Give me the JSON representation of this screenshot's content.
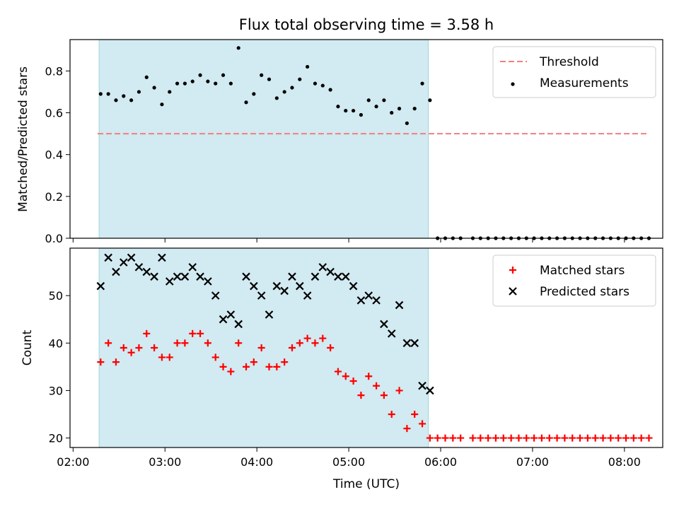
{
  "chart_data": [
    {
      "type": "scatter",
      "title": "Flux total observing time = 3.58 h",
      "ylabel": "Matched/Predicted stars",
      "xlabel": "",
      "ylim": [
        0,
        0.95
      ],
      "yticks": [
        0.0,
        0.2,
        0.4,
        0.6,
        0.8
      ],
      "ytick_labels": [
        "0.0",
        "0.2",
        "0.4",
        "0.6",
        "0.8"
      ],
      "legend_position": "top-right",
      "threshold": {
        "name": "Threshold",
        "value": 0.5,
        "x_start": "02:16",
        "x_end": "08:16",
        "color": "#f08080"
      },
      "shaded_region": {
        "x_start": "02:17",
        "x_end": "05:52",
        "color": "#add8e6"
      },
      "series": [
        {
          "name": "Measurements",
          "color": "#000000",
          "x": [
            "02:18",
            "02:23",
            "02:28",
            "02:33",
            "02:38",
            "02:43",
            "02:48",
            "02:53",
            "02:58",
            "03:03",
            "03:08",
            "03:13",
            "03:18",
            "03:23",
            "03:28",
            "03:33",
            "03:38",
            "03:43",
            "03:48",
            "03:53",
            "03:58",
            "04:03",
            "04:08",
            "04:13",
            "04:18",
            "04:23",
            "04:28",
            "04:33",
            "04:38",
            "04:43",
            "04:48",
            "04:53",
            "04:58",
            "05:03",
            "05:08",
            "05:13",
            "05:18",
            "05:23",
            "05:28",
            "05:33",
            "05:38",
            "05:43",
            "05:48",
            "05:53",
            "05:58",
            "06:03",
            "06:08",
            "06:13",
            "06:21",
            "06:26",
            "06:31",
            "06:36",
            "06:41",
            "06:46",
            "06:51",
            "06:56",
            "07:01",
            "07:06",
            "07:11",
            "07:16",
            "07:21",
            "07:26",
            "07:31",
            "07:36",
            "07:41",
            "07:46",
            "07:51",
            "07:56",
            "08:01",
            "08:06",
            "08:11",
            "08:16"
          ],
          "y": [
            0.69,
            0.69,
            0.66,
            0.68,
            0.66,
            0.7,
            0.77,
            0.72,
            0.64,
            0.7,
            0.74,
            0.74,
            0.75,
            0.78,
            0.75,
            0.74,
            0.78,
            0.74,
            0.91,
            0.65,
            0.69,
            0.78,
            0.76,
            0.67,
            0.7,
            0.72,
            0.76,
            0.82,
            0.74,
            0.73,
            0.71,
            0.63,
            0.61,
            0.61,
            0.59,
            0.66,
            0.63,
            0.66,
            0.6,
            0.62,
            0.55,
            0.62,
            0.74,
            0.66,
            0,
            0,
            0,
            0,
            0,
            0,
            0,
            0,
            0,
            0,
            0,
            0,
            0,
            0,
            0,
            0,
            0,
            0,
            0,
            0,
            0,
            0,
            0,
            0,
            0,
            0,
            0,
            0
          ]
        }
      ]
    },
    {
      "type": "scatter",
      "xlabel": "Time (UTC)",
      "ylabel": "Count",
      "ylim": [
        18,
        60
      ],
      "yticks": [
        20,
        30,
        40,
        50
      ],
      "ytick_labels": [
        "20",
        "30",
        "40",
        "50"
      ],
      "xticks": [
        "02:00",
        "03:00",
        "04:00",
        "05:00",
        "06:00",
        "07:00",
        "08:00"
      ],
      "legend_position": "top-right",
      "shaded_region": {
        "x_start": "02:17",
        "x_end": "05:52",
        "color": "#add8e6"
      },
      "series": [
        {
          "name": "Matched stars",
          "marker": "plus",
          "color": "#ff0000",
          "x": [
            "02:18",
            "02:23",
            "02:28",
            "02:33",
            "02:38",
            "02:43",
            "02:48",
            "02:53",
            "02:58",
            "03:03",
            "03:08",
            "03:13",
            "03:18",
            "03:23",
            "03:28",
            "03:33",
            "03:38",
            "03:43",
            "03:48",
            "03:53",
            "03:58",
            "04:03",
            "04:08",
            "04:13",
            "04:18",
            "04:23",
            "04:28",
            "04:33",
            "04:38",
            "04:43",
            "04:48",
            "04:53",
            "04:58",
            "05:03",
            "05:08",
            "05:13",
            "05:18",
            "05:23",
            "05:28",
            "05:33",
            "05:38",
            "05:43",
            "05:48",
            "05:53",
            "05:58",
            "06:03",
            "06:08",
            "06:13",
            "06:21",
            "06:26",
            "06:31",
            "06:36",
            "06:41",
            "06:46",
            "06:51",
            "06:56",
            "07:01",
            "07:06",
            "07:11",
            "07:16",
            "07:21",
            "07:26",
            "07:31",
            "07:36",
            "07:41",
            "07:46",
            "07:51",
            "07:56",
            "08:01",
            "08:06",
            "08:11",
            "08:16"
          ],
          "y": [
            36,
            40,
            36,
            39,
            38,
            39,
            42,
            39,
            37,
            37,
            40,
            40,
            42,
            42,
            40,
            37,
            35,
            34,
            40,
            35,
            36,
            39,
            35,
            35,
            36,
            39,
            40,
            41,
            40,
            41,
            39,
            34,
            33,
            32,
            29,
            33,
            31,
            29,
            25,
            30,
            22,
            25,
            23,
            20,
            20,
            20,
            20,
            20,
            20,
            20,
            20,
            20,
            20,
            20,
            20,
            20,
            20,
            20,
            20,
            20,
            20,
            20,
            20,
            20,
            20,
            20,
            20,
            20,
            20,
            20,
            20,
            20
          ]
        },
        {
          "name": "Predicted stars",
          "marker": "x",
          "color": "#000000",
          "x": [
            "02:18",
            "02:23",
            "02:28",
            "02:33",
            "02:38",
            "02:43",
            "02:48",
            "02:53",
            "02:58",
            "03:03",
            "03:08",
            "03:13",
            "03:18",
            "03:23",
            "03:28",
            "03:33",
            "03:38",
            "03:43",
            "03:48",
            "03:53",
            "03:58",
            "04:03",
            "04:08",
            "04:13",
            "04:18",
            "04:23",
            "04:28",
            "04:33",
            "04:38",
            "04:43",
            "04:48",
            "04:53",
            "04:58",
            "05:03",
            "05:08",
            "05:13",
            "05:18",
            "05:23",
            "05:28",
            "05:33",
            "05:38",
            "05:43",
            "05:48",
            "05:53"
          ],
          "y": [
            52,
            58,
            55,
            57,
            58,
            56,
            55,
            54,
            58,
            53,
            54,
            54,
            56,
            54,
            53,
            50,
            45,
            46,
            44,
            54,
            52,
            50,
            46,
            52,
            51,
            54,
            52,
            50,
            54,
            56,
            55,
            54,
            54,
            52,
            49,
            50,
            49,
            44,
            42,
            48,
            40,
            40,
            31,
            30
          ]
        }
      ]
    }
  ]
}
